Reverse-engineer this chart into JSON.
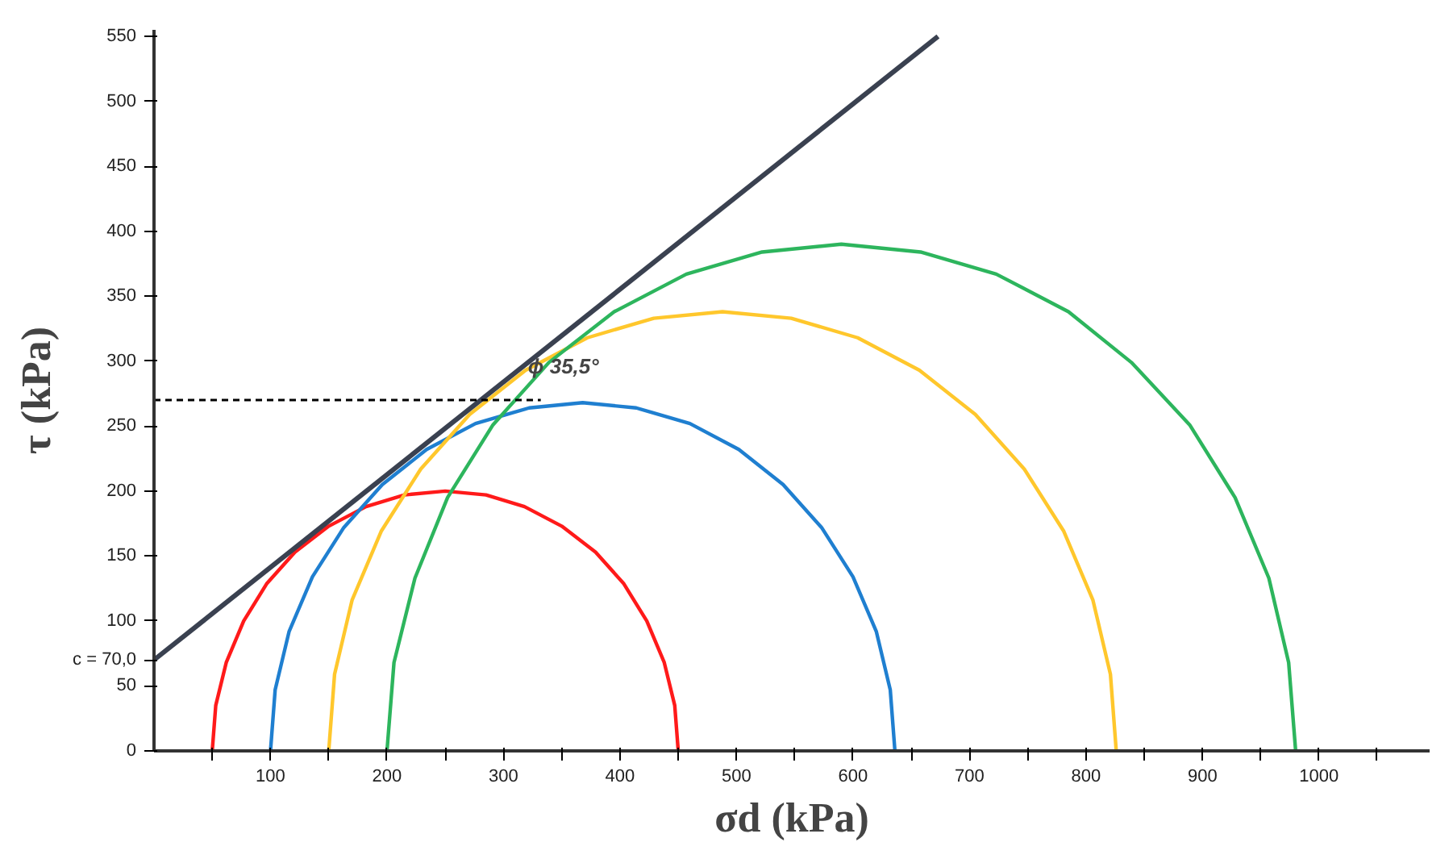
{
  "chart_data": {
    "type": "line",
    "xlabel": "σd (kPa)",
    "ylabel": "τ (kPa)",
    "xlim": [
      0,
      1095
    ],
    "ylim": [
      0,
      555
    ],
    "xticks": [
      {
        "value": 50,
        "label": null
      },
      100,
      {
        "value": 150,
        "label": null
      },
      200,
      {
        "value": 250,
        "label": null
      },
      300,
      {
        "value": 350,
        "label": null
      },
      400,
      {
        "value": 450,
        "label": null
      },
      500,
      {
        "value": 550,
        "label": null
      },
      600,
      {
        "value": 650,
        "label": null
      },
      700,
      {
        "value": 750,
        "label": null
      },
      800,
      {
        "value": 850,
        "label": null
      },
      900,
      {
        "value": 950,
        "label": null
      },
      1000,
      {
        "value": 1050,
        "label": null
      }
    ],
    "yticks": [
      0,
      50,
      {
        "value": 70,
        "label": "c = 70,0"
      },
      100,
      150,
      200,
      250,
      300,
      350,
      400,
      450,
      500,
      550
    ],
    "grid": false,
    "series": [
      {
        "color": "#ff1a1a",
        "x": [
          50,
          53,
          62,
          77,
          97,
          121,
          150,
          182,
          215,
          250,
          285,
          318,
          350,
          379,
          403,
          423,
          438,
          447,
          450
        ],
        "values": [
          0,
          35,
          68,
          100,
          129,
          153,
          173,
          188,
          197,
          200,
          197,
          188,
          173,
          153,
          129,
          100,
          68,
          35,
          0
        ]
      },
      {
        "color": "#1f7fd0",
        "x": [
          100,
          104,
          116,
          136,
          163,
          196,
          234,
          276,
          322,
          368,
          414,
          460,
          502,
          540,
          573,
          600,
          620,
          632,
          636
        ],
        "values": [
          0,
          47,
          92,
          134,
          172,
          205,
          232,
          252,
          264,
          268,
          264,
          252,
          232,
          205,
          172,
          134,
          92,
          47,
          0
        ]
      },
      {
        "color": "#ffc72c",
        "x": [
          150,
          155,
          170,
          195,
          229,
          271,
          319,
          372,
          429,
          488,
          547,
          604,
          657,
          705,
          747,
          781,
          806,
          821,
          826
        ],
        "values": [
          0,
          59,
          116,
          169,
          217,
          259,
          293,
          318,
          333,
          338,
          333,
          318,
          293,
          259,
          217,
          169,
          116,
          59,
          0
        ]
      },
      {
        "color": "#2db55d",
        "x": [
          200,
          206,
          224,
          252,
          291,
          339,
          395,
          457,
          522,
          590,
          658,
          723,
          785,
          839,
          889,
          928,
          957,
          974,
          980
        ],
        "values": [
          0,
          68,
          133,
          195,
          251,
          299,
          338,
          367,
          384,
          390,
          384,
          367,
          338,
          299,
          251,
          195,
          133,
          68,
          0
        ]
      },
      {
        "color": "#3a4150",
        "x": [
          0,
          673
        ],
        "values": [
          70,
          550
        ]
      },
      {
        "color": "#000000",
        "line_style": "dashed",
        "x": [
          0,
          332
        ],
        "values": [
          270,
          270
        ]
      }
    ],
    "annotations": [
      {
        "text": "ϕ 35,5°",
        "x": 321,
        "y": 287
      }
    ]
  }
}
